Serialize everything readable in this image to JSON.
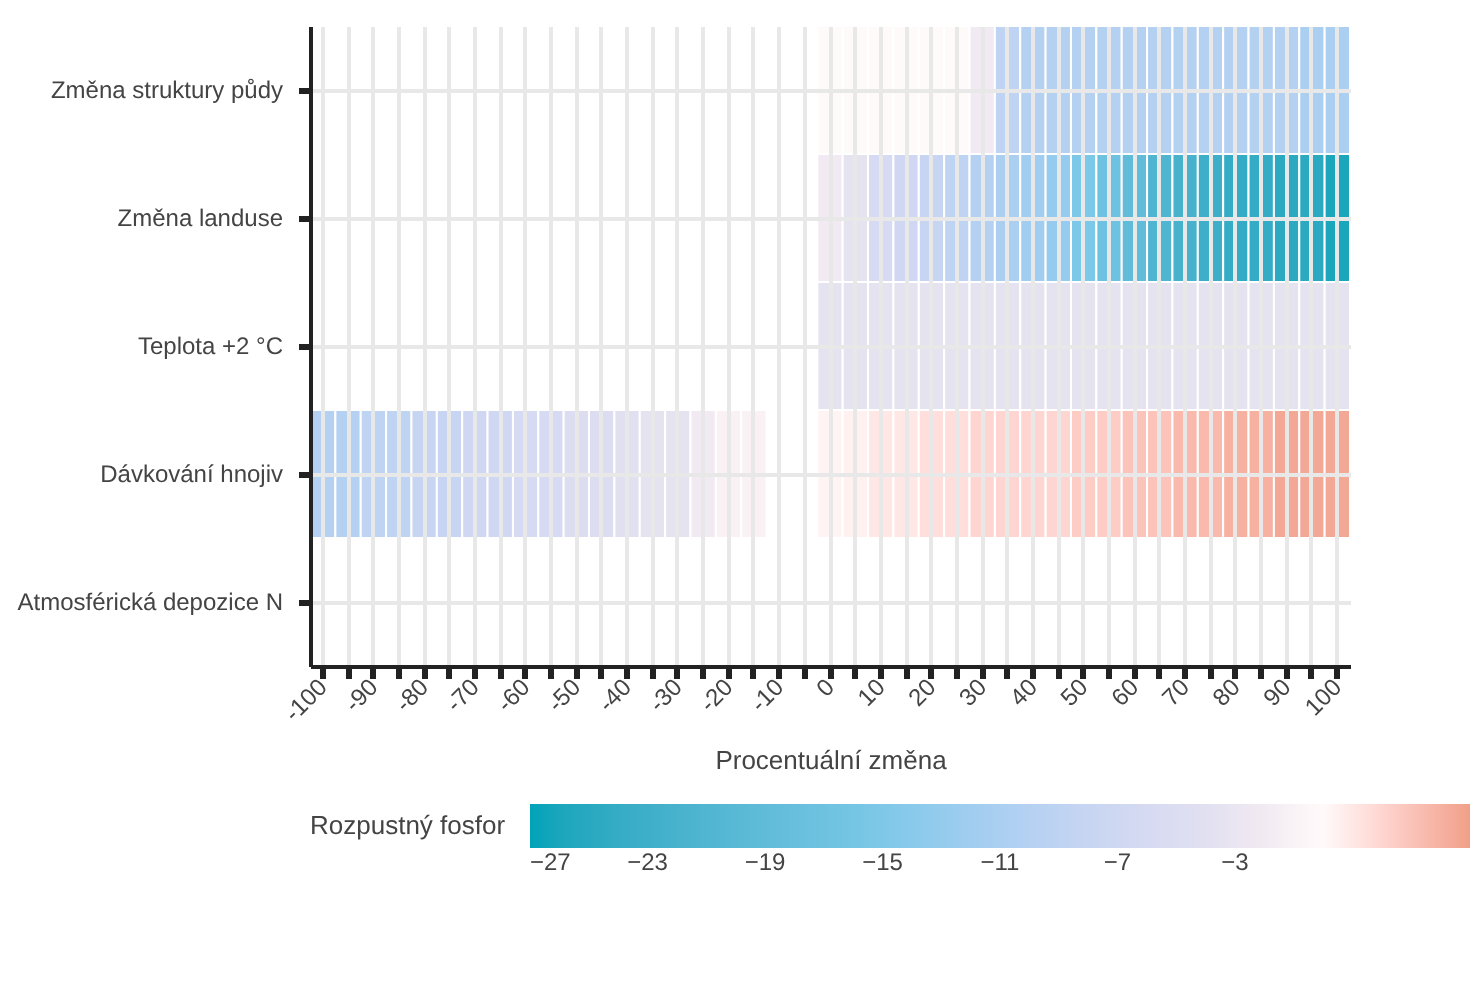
{
  "chart_data": {
    "type": "heatmap",
    "xlabel": "Procentuální změna",
    "clabel": "Rozpustný fosfor",
    "categories": [
      "-100",
      null,
      "-90",
      null,
      "-80",
      null,
      "-70",
      null,
      "-60",
      null,
      "-50",
      null,
      "-40",
      null,
      "-30",
      null,
      "-20",
      null,
      "-10",
      null,
      "0",
      null,
      "10",
      null,
      "20",
      null,
      "30",
      null,
      "40",
      null,
      "50",
      null,
      "60",
      null,
      "70",
      null,
      "80",
      null,
      "90",
      null,
      "100"
    ],
    "y_categories": [
      "Změna struktury půdy",
      "Změna landuse",
      "Teplota +2 °C",
      "Dávkování hnojiv",
      "Atmosférická depozice N"
    ],
    "cells": [
      [
        null,
        null,
        null,
        null,
        null,
        null,
        null,
        null,
        null,
        null,
        null,
        null,
        null,
        null,
        null,
        null,
        null,
        null,
        null,
        null,
        0,
        0,
        0,
        0,
        0,
        0,
        -2,
        -9,
        -10,
        -10,
        -10,
        -10,
        -10,
        -10,
        -10,
        -10,
        -10,
        -10,
        -10,
        -11,
        -11
      ],
      [
        null,
        null,
        null,
        null,
        null,
        null,
        null,
        null,
        null,
        null,
        null,
        null,
        null,
        null,
        null,
        null,
        null,
        null,
        null,
        null,
        -2,
        -3,
        -6,
        -7,
        -8,
        -9,
        -10,
        -11,
        -12,
        -13,
        -15,
        -17,
        -19,
        -21,
        -22,
        -23,
        -24,
        -24,
        -25,
        -25,
        -26
      ],
      [
        null,
        null,
        null,
        null,
        null,
        null,
        null,
        null,
        null,
        null,
        null,
        null,
        null,
        null,
        null,
        null,
        null,
        null,
        null,
        null,
        -3,
        -3,
        -3,
        -3,
        -3,
        -3,
        -3,
        -3,
        -3,
        -3,
        -3,
        -3,
        -3,
        -3,
        -3,
        -3,
        -3,
        -3,
        -3,
        -3,
        -3
      ],
      [
        -10,
        -10,
        -9,
        -9,
        -8,
        -8,
        -7,
        -7,
        -6,
        -6,
        -5,
        -5,
        -4,
        -3,
        -3,
        -2,
        -1,
        -1,
        null,
        null,
        0.3,
        0.5,
        1,
        1,
        1.5,
        1.5,
        2,
        2,
        2,
        2,
        2.5,
        2.5,
        3,
        3,
        3.5,
        3.5,
        4,
        4,
        4.5,
        4.5,
        4.5
      ],
      [
        null,
        null,
        null,
        null,
        null,
        null,
        null,
        null,
        null,
        null,
        null,
        null,
        null,
        null,
        null,
        null,
        null,
        null,
        null,
        null,
        null,
        null,
        null,
        null,
        null,
        null,
        null,
        null,
        null,
        null,
        null,
        null,
        null,
        null,
        null,
        null,
        null,
        null,
        null,
        null,
        null
      ]
    ],
    "clim": [
      -27,
      5
    ],
    "cticks": [
      -27,
      -23,
      -19,
      -15,
      -11,
      -7,
      -3
    ],
    "grid": true
  }
}
